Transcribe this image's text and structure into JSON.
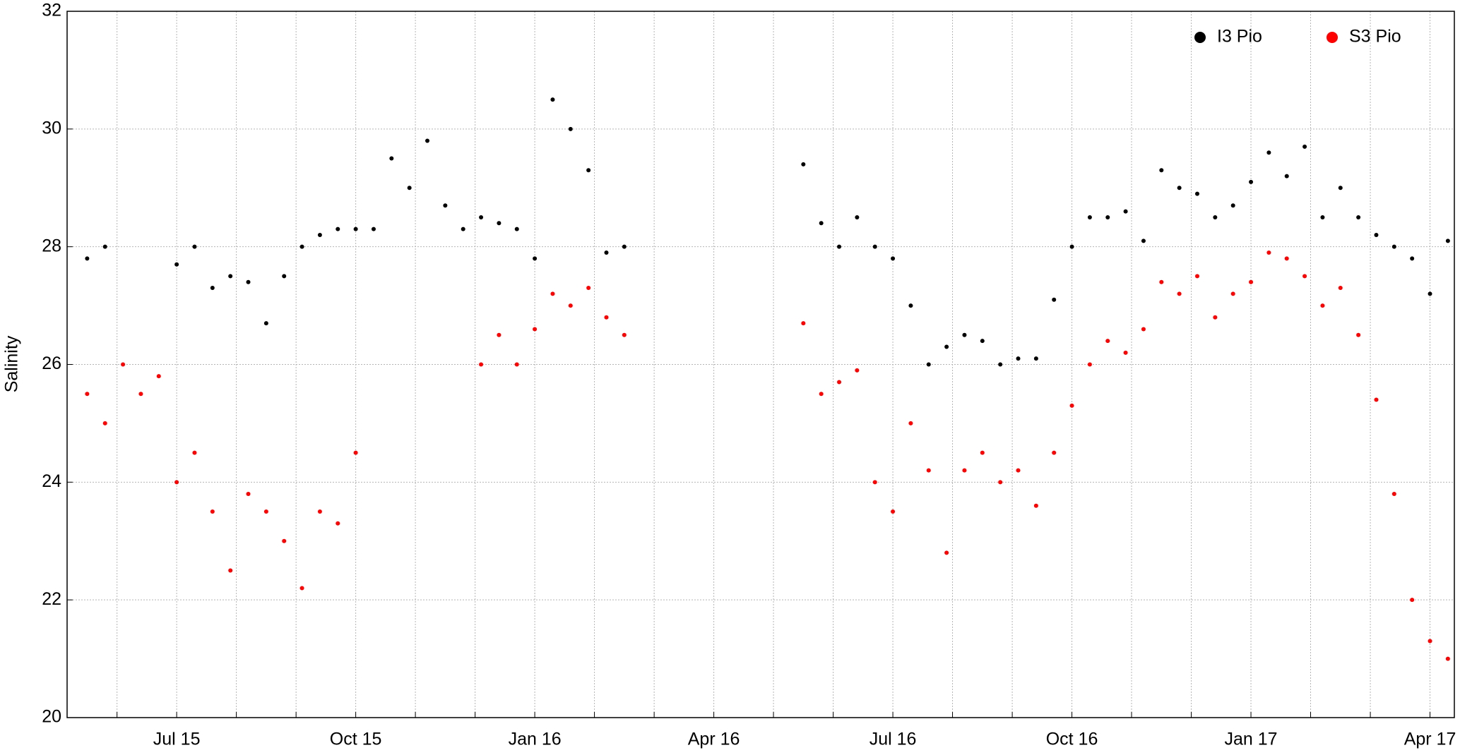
{
  "chart_data": {
    "type": "scatter",
    "y_label": "Salinity",
    "x": [
      2015.375,
      2015.4,
      2015.425,
      2015.45,
      2015.475,
      2015.5,
      2015.525,
      2015.55,
      2015.575,
      2015.6,
      2015.625,
      2015.65,
      2015.675,
      2015.7,
      2015.725,
      2015.75,
      2015.775,
      2015.8,
      2015.825,
      2015.85,
      2015.875,
      2015.9,
      2015.925,
      2015.95,
      2015.975,
      2016,
      2016.025,
      2016.05,
      2016.075,
      2016.1,
      2016.125,
      2016.15,
      2016.175,
      2016.2,
      2016.225,
      2016.25,
      2016.275,
      2016.3,
      2016.325,
      2016.35,
      2016.375,
      2016.4,
      2016.425,
      2016.45,
      2016.475,
      2016.5,
      2016.525,
      2016.55,
      2016.575,
      2016.6,
      2016.625,
      2016.65,
      2016.675,
      2016.7,
      2016.725,
      2016.75,
      2016.775,
      2016.8,
      2016.825,
      2016.85,
      2016.875,
      2016.9,
      2016.925,
      2016.95,
      2016.975,
      2017,
      2017.025,
      2017.05,
      2017.075,
      2017.1,
      2017.125,
      2017.15,
      2017.175,
      2017.2,
      2017.225,
      2017.25,
      2017.275
    ],
    "series": [
      {
        "name": "I3 Pio",
        "color": "#000000",
        "values": [
          27.8,
          28.0,
          null,
          null,
          null,
          27.7,
          28.0,
          27.3,
          27.5,
          27.4,
          26.7,
          27.5,
          28.0,
          28.2,
          28.3,
          28.3,
          28.3,
          29.5,
          29.0,
          29.8,
          28.7,
          28.3,
          28.5,
          28.4,
          28.3,
          27.8,
          30.5,
          30.0,
          29.3,
          27.9,
          28.0,
          null,
          null,
          null,
          null,
          null,
          null,
          null,
          null,
          null,
          29.4,
          28.4,
          28.0,
          28.5,
          28.0,
          27.8,
          27.0,
          26.0,
          26.3,
          26.5,
          26.4,
          26.0,
          26.1,
          26.1,
          27.1,
          28.0,
          28.5,
          28.5,
          28.6,
          28.1,
          29.3,
          29.0,
          28.9,
          28.5,
          28.7,
          29.1,
          29.6,
          29.2,
          29.7,
          28.5,
          29.0,
          28.5,
          28.2,
          28.0,
          27.8,
          27.2,
          28.1
        ]
      },
      {
        "name": "S3 Pio",
        "color": "#ff0000",
        "values": [
          25.5,
          25.0,
          26.0,
          25.5,
          25.8,
          24.0,
          24.5,
          23.5,
          22.5,
          23.8,
          23.5,
          23.0,
          22.2,
          23.5,
          23.3,
          24.5,
          null,
          null,
          null,
          null,
          null,
          null,
          26.0,
          26.5,
          26.0,
          26.6,
          27.2,
          27.0,
          27.3,
          26.8,
          26.5,
          null,
          null,
          null,
          null,
          null,
          null,
          null,
          null,
          null,
          26.7,
          25.5,
          25.7,
          25.9,
          24.0,
          23.5,
          25.0,
          24.2,
          22.8,
          24.2,
          24.5,
          24.0,
          24.2,
          23.6,
          24.5,
          25.3,
          26.0,
          26.4,
          26.2,
          26.6,
          27.4,
          27.2,
          27.5,
          26.8,
          27.2,
          27.4,
          27.9,
          27.8,
          27.5,
          27.0,
          27.3,
          26.5,
          25.4,
          23.8,
          22.0,
          21.3,
          21.0
        ]
      }
    ],
    "xlim": [
      2015.347,
      2017.284
    ],
    "xticks": [
      {
        "value": 2015.4167,
        "label": null
      },
      {
        "value": 2015.5,
        "label": "Jul 15"
      },
      {
        "value": 2015.5833,
        "label": null
      },
      {
        "value": 2015.6667,
        "label": null
      },
      {
        "value": 2015.75,
        "label": "Oct 15"
      },
      {
        "value": 2015.8333,
        "label": null
      },
      {
        "value": 2015.9167,
        "label": null
      },
      {
        "value": 2016,
        "label": "Jan 16"
      },
      {
        "value": 2016.0833,
        "label": null
      },
      {
        "value": 2016.1667,
        "label": null
      },
      {
        "value": 2016.25,
        "label": "Apr 16"
      },
      {
        "value": 2016.3333,
        "label": null
      },
      {
        "value": 2016.4167,
        "label": null
      },
      {
        "value": 2016.5,
        "label": "Jul 16"
      },
      {
        "value": 2016.5833,
        "label": null
      },
      {
        "value": 2016.6667,
        "label": null
      },
      {
        "value": 2016.75,
        "label": "Oct 16"
      },
      {
        "value": 2016.8333,
        "label": null
      },
      {
        "value": 2016.9167,
        "label": null
      },
      {
        "value": 2017,
        "label": "Jan 17"
      },
      {
        "value": 2017.0833,
        "label": null
      },
      {
        "value": 2017.1667,
        "label": null
      },
      {
        "value": 2017.25,
        "label": "Apr 17"
      }
    ],
    "ylim": [
      20,
      32
    ],
    "yticks": [
      20,
      22,
      24,
      26,
      28,
      30,
      32
    ],
    "grid": true,
    "legend": "top-right"
  }
}
